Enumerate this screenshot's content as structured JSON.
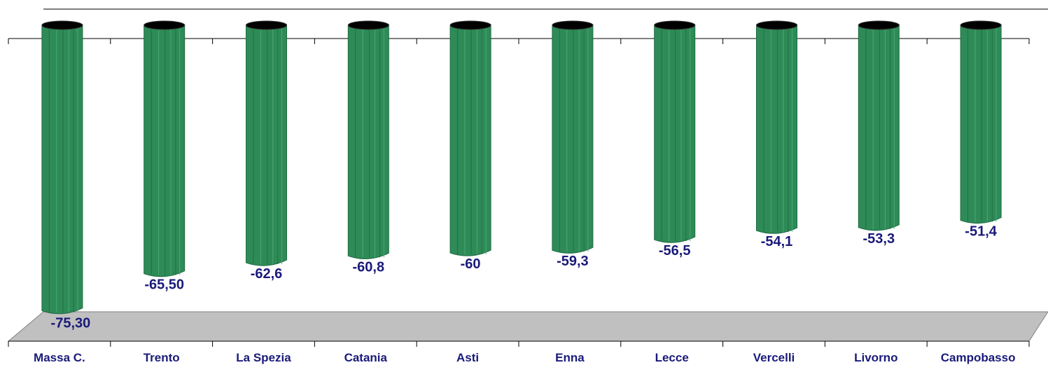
{
  "chart_data": {
    "type": "bar",
    "categories": [
      "Massa C.",
      "Trento",
      "La Spezia",
      "Catania",
      "Asti",
      "Enna",
      "Lecce",
      "Vercelli",
      "Livorno",
      "Campobasso"
    ],
    "values": [
      -75.3,
      -65.5,
      -62.6,
      -60.8,
      -60,
      -59.3,
      -56.5,
      -54.1,
      -53.3,
      -51.4
    ],
    "value_labels": [
      "-75,30",
      "-65,50",
      "-62,6",
      "-60,8",
      "-60",
      "-59,3",
      "-56,5",
      "-54,1",
      "-53,3",
      "-51,4"
    ],
    "ylim": [
      -80,
      0
    ],
    "grid": false,
    "legend": "none",
    "colors": {
      "bar": "#2e8b57",
      "bar_dark": "#1f6b42",
      "bar_light": "#4cae7a",
      "bar_top": "#000000",
      "floor": "#c0c0c0",
      "label": "#1a1a7a",
      "axis": "#000000"
    }
  }
}
